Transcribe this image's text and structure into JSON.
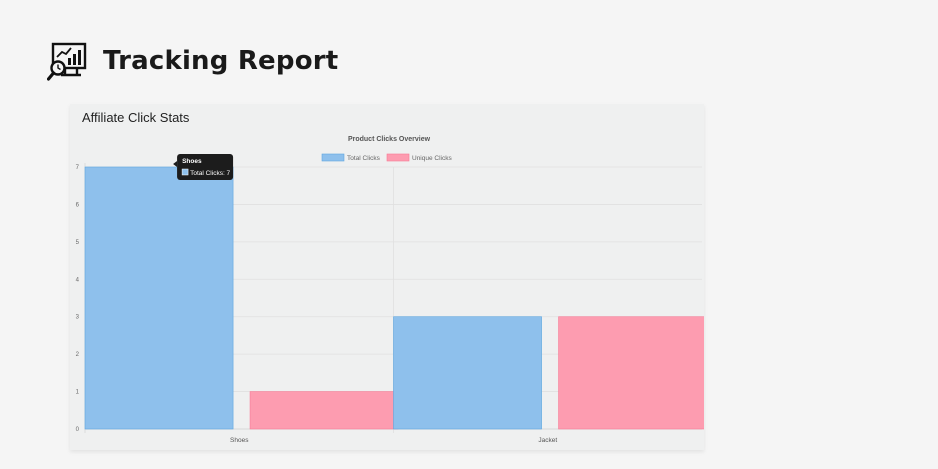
{
  "page": {
    "title": "Tracking Report",
    "icon": "analytics-monitor-icon"
  },
  "card": {
    "title": "Affiliate Click Stats"
  },
  "chart_data": {
    "type": "bar",
    "title": "Product Clicks Overview",
    "categories": [
      "Shoes",
      "Jacket"
    ],
    "series": [
      {
        "name": "Total Clicks",
        "values": [
          7,
          3
        ],
        "color": "#8ec0ec",
        "border": "#5ea6e0"
      },
      {
        "name": "Unique Clicks",
        "values": [
          1,
          3
        ],
        "color": "#fd9cb0",
        "border": "#f77a95"
      }
    ],
    "ylim": [
      0,
      7
    ],
    "yticks": [
      0,
      1,
      2,
      3,
      4,
      5,
      6,
      7
    ],
    "grid": true,
    "legend": "top-center",
    "tooltip": {
      "category_index": 0,
      "title": "Shoes",
      "label": "Total Clicks: 7"
    }
  }
}
